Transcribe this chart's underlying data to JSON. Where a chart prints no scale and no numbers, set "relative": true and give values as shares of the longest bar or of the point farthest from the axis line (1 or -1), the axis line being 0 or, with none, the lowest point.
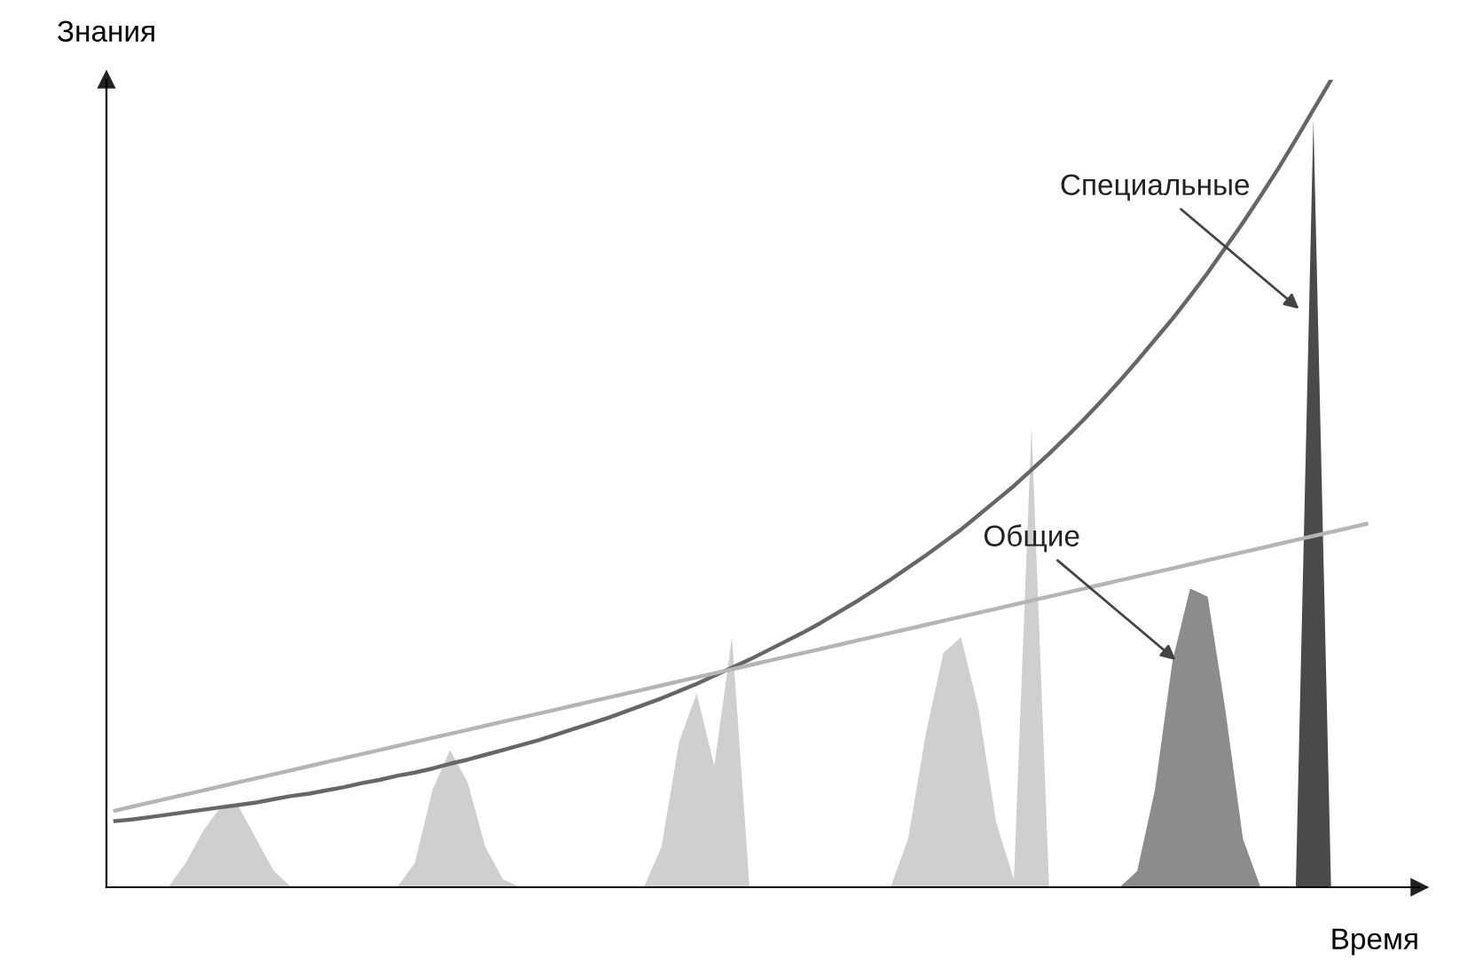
{
  "chart_data": {
    "type": "area",
    "relative": true,
    "xlabel": "Время",
    "ylabel": "Знания",
    "categories": [
      null,
      null,
      null,
      null,
      null,
      null,
      null,
      null,
      null,
      null,
      null,
      null,
      null,
      null,
      null,
      null,
      null,
      null,
      null,
      null,
      null,
      null,
      null,
      null,
      null,
      null,
      null,
      null,
      null,
      null,
      null,
      null,
      null,
      null,
      null,
      null,
      null,
      null,
      null,
      null,
      null,
      null,
      null,
      null,
      null,
      null,
      null,
      null,
      null,
      null,
      null,
      null,
      null,
      null,
      null,
      null,
      null,
      null,
      null,
      null,
      null,
      null,
      null,
      null,
      null,
      null,
      null,
      null,
      null,
      null,
      null,
      null,
      null
    ],
    "series": [
      {
        "color": "#cfcfcf",
        "values": [
          0,
          0,
          0,
          0,
          0.03,
          0.07,
          0.1,
          0.1,
          0.06,
          0.02,
          0,
          0,
          0,
          0,
          0,
          0,
          0,
          0.03,
          0.12,
          0.17,
          0.13,
          0.05,
          0.01,
          0,
          0,
          0,
          0,
          0,
          0,
          0,
          0,
          0.05,
          0.18,
          0.24,
          0.15,
          0.31,
          0,
          0,
          0,
          0,
          0,
          0,
          0,
          0,
          0,
          0.06,
          0.19,
          0.29,
          0.31,
          0.22,
          0.08,
          0.01,
          0.57,
          0,
          0,
          0,
          0,
          0,
          0,
          0,
          0,
          0,
          0,
          0,
          0,
          0,
          0,
          0,
          0,
          0,
          0,
          0,
          0
        ]
      },
      {
        "name": "Общие",
        "color": "#8c8c8c",
        "values": [
          null,
          null,
          null,
          null,
          null,
          null,
          null,
          null,
          null,
          null,
          null,
          null,
          null,
          null,
          null,
          null,
          null,
          null,
          null,
          null,
          null,
          null,
          null,
          null,
          null,
          null,
          null,
          null,
          null,
          null,
          null,
          null,
          null,
          null,
          null,
          null,
          null,
          null,
          null,
          null,
          null,
          null,
          null,
          null,
          null,
          null,
          null,
          null,
          null,
          null,
          null,
          null,
          null,
          null,
          null,
          null,
          null,
          0,
          0.02,
          0.12,
          0.28,
          0.37,
          0.36,
          0.22,
          0.06,
          0,
          null,
          null,
          null,
          null,
          null,
          null,
          null
        ]
      },
      {
        "name": "Специальные",
        "color": "#4a4a4a",
        "values": [
          null,
          null,
          null,
          null,
          null,
          null,
          null,
          null,
          null,
          null,
          null,
          null,
          null,
          null,
          null,
          null,
          null,
          null,
          null,
          null,
          null,
          null,
          null,
          null,
          null,
          null,
          null,
          null,
          null,
          null,
          null,
          null,
          null,
          null,
          null,
          null,
          null,
          null,
          null,
          null,
          null,
          null,
          null,
          null,
          null,
          null,
          null,
          null,
          null,
          null,
          null,
          null,
          null,
          null,
          null,
          null,
          null,
          null,
          null,
          null,
          null,
          null,
          null,
          null,
          null,
          null,
          null,
          0,
          0.95,
          0,
          null,
          null,
          null
        ]
      },
      {
        "type": "line",
        "color": "#666666",
        "values": [
          0.082,
          0.084,
          0.087,
          0.09,
          0.093,
          0.096,
          0.099,
          0.102,
          0.105,
          0.109,
          0.113,
          0.116,
          0.12,
          0.124,
          0.129,
          0.133,
          0.138,
          0.142,
          0.147,
          0.153,
          0.158,
          0.164,
          0.17,
          0.176,
          0.182,
          0.189,
          0.196,
          0.203,
          0.21,
          0.218,
          0.226,
          0.234,
          0.243,
          0.252,
          0.262,
          0.272,
          0.282,
          0.293,
          0.304,
          0.315,
          0.327,
          0.34,
          0.353,
          0.367,
          0.381,
          0.396,
          0.411,
          0.427,
          0.443,
          0.461,
          0.479,
          0.497,
          0.517,
          0.537,
          0.558,
          0.58,
          0.603,
          0.627,
          0.652,
          0.678,
          0.704,
          0.732,
          0.761,
          0.792,
          0.823,
          0.856,
          0.89,
          0.926,
          0.963,
          1.0,
          null,
          null,
          null
        ]
      },
      {
        "type": "line",
        "color": "#b5b5b5",
        "values": [
          0.095,
          0.1,
          0.105,
          0.11,
          0.115,
          0.12,
          0.125,
          0.13,
          0.135,
          0.14,
          0.145,
          0.15,
          0.155,
          0.16,
          0.165,
          0.17,
          0.175,
          0.18,
          0.185,
          0.19,
          0.195,
          0.2,
          0.205,
          0.21,
          0.215,
          0.22,
          0.225,
          0.23,
          0.235,
          0.24,
          0.245,
          0.25,
          0.255,
          0.26,
          0.265,
          0.27,
          0.275,
          0.28,
          0.285,
          0.29,
          0.295,
          0.3,
          0.305,
          0.31,
          0.315,
          0.32,
          0.325,
          0.33,
          0.335,
          0.34,
          0.345,
          0.35,
          0.355,
          0.36,
          0.365,
          0.37,
          0.375,
          0.38,
          0.385,
          0.39,
          0.395,
          0.4,
          0.405,
          0.41,
          0.415,
          0.42,
          0.425,
          0.43,
          0.435,
          0.44,
          0.445,
          0.45,
          null
        ]
      }
    ]
  }
}
